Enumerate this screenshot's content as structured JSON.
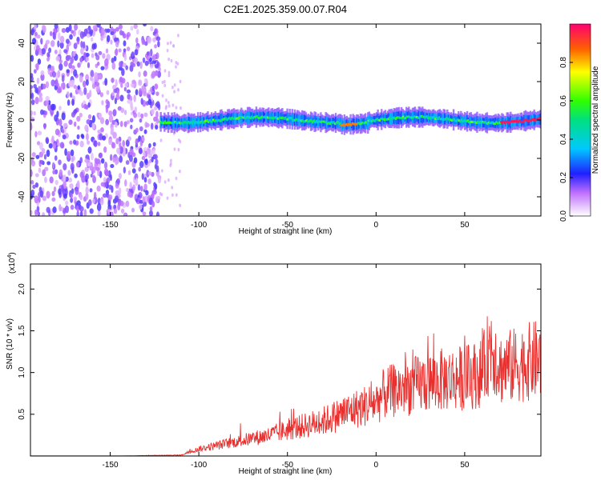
{
  "title": "C2E1.2025.359.00.07.R04",
  "chart_data": [
    {
      "type": "heatmap",
      "xlabel": "Height of straight line (km)",
      "ylabel": "Frequency (Hz)",
      "xlim": [
        -195,
        93
      ],
      "ylim": [
        -50,
        50
      ],
      "xticks": [
        -150,
        -100,
        -50,
        0,
        50
      ],
      "yticks": [
        -40,
        -20,
        0,
        20,
        40
      ],
      "colorbar": {
        "label": "Normalized spectral amplitude",
        "range": [
          0,
          1
        ],
        "ticks": [
          0.0,
          0.2,
          0.4,
          0.6,
          0.8
        ]
      },
      "regions": [
        {
          "name": "broadband noise",
          "x_from": -195,
          "x_to": -122,
          "freq_range": [
            -50,
            50
          ],
          "amplitude": 0.1
        },
        {
          "name": "signal band",
          "x_from": -122,
          "x_to": 93,
          "freq_center": 0,
          "freq_halfwidth": 4,
          "amplitude_peak": 1.0
        }
      ]
    },
    {
      "type": "line",
      "xlabel": "Height of straight line (km)",
      "ylabel": "SNR (10 * v/v)",
      "y_scale_label": "(x10",
      "y_scale_exp": "4",
      "y_scale_close": ")",
      "xlim": [
        -195,
        93
      ],
      "ylim": [
        0,
        2.3
      ],
      "xticks": [
        -150,
        -100,
        -50,
        0,
        50
      ],
      "yticks": [
        0.5,
        1.0,
        1.5,
        2.0
      ],
      "series": [
        {
          "name": "SNR",
          "color": "#e8312f",
          "x": [
            -195,
            -150,
            -110,
            -105,
            -100,
            -90,
            -80,
            -70,
            -60,
            -50,
            -40,
            -30,
            -20,
            -10,
            0,
            5,
            10,
            20,
            30,
            40,
            50,
            60,
            65,
            70,
            80,
            90,
            93
          ],
          "y": [
            0.0,
            0.0,
            0.01,
            0.05,
            0.08,
            0.12,
            0.16,
            0.2,
            0.24,
            0.3,
            0.35,
            0.4,
            0.48,
            0.55,
            0.62,
            0.72,
            0.75,
            0.8,
            0.85,
            0.88,
            0.9,
            0.95,
            1.3,
            1.0,
            1.05,
            1.1,
            1.1
          ]
        }
      ]
    }
  ]
}
